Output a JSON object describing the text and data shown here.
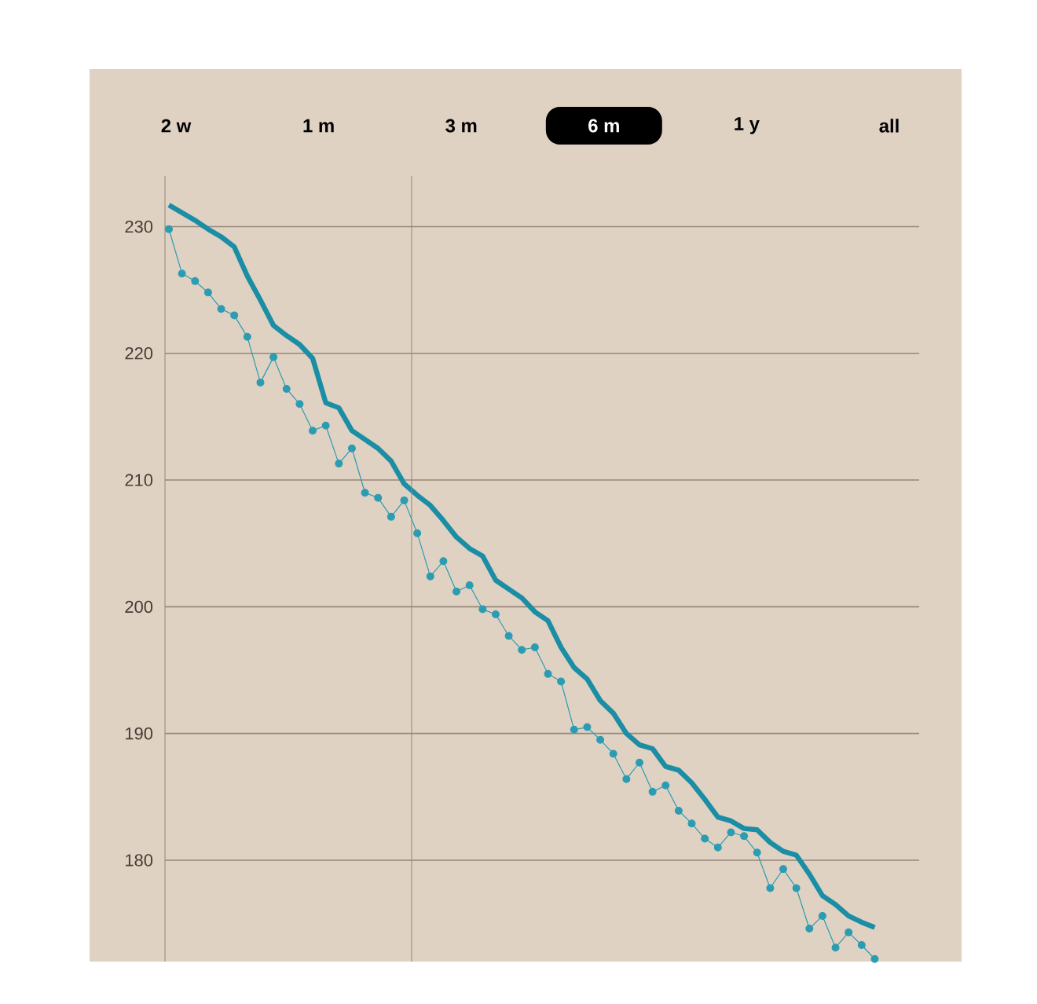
{
  "chart_data": {
    "type": "line",
    "categories": [
      null,
      null,
      null,
      null,
      null,
      null,
      null,
      null,
      null,
      null,
      null,
      null,
      null,
      null,
      null,
      null,
      null,
      null,
      null,
      null,
      null,
      null,
      null,
      null,
      null,
      null,
      null,
      null,
      null,
      null,
      null,
      null,
      null,
      null,
      null,
      null,
      null,
      null,
      null,
      null,
      null,
      null,
      null,
      null,
      null,
      null,
      null,
      null,
      null,
      null,
      null,
      null,
      null,
      null,
      null
    ],
    "ylim": [
      172,
      234
    ],
    "yticks": [
      180,
      190,
      200,
      210,
      220,
      230
    ],
    "tick_labels": "y",
    "grid": "y",
    "line_style": "solid",
    "annotations": [
      "2 w",
      "1 m",
      "3 m",
      "6 m",
      "1 y",
      "all"
    ],
    "series": [
      {
        "color": "#1b8ea6",
        "marker": "none",
        "values": [
          231.7,
          231.1,
          230.5,
          229.8,
          229.2,
          228.4,
          226.1,
          224.2,
          222.2,
          221.4,
          220.7,
          219.6,
          216.1,
          215.7,
          213.9,
          213.2,
          212.5,
          211.5,
          209.7,
          208.8,
          208.0,
          206.8,
          205.5,
          204.6,
          204.0,
          202.1,
          201.4,
          200.7,
          199.6,
          198.9,
          196.8,
          195.2,
          194.3,
          192.6,
          191.6,
          190.0,
          189.1,
          188.8,
          187.4,
          187.1,
          186.1,
          184.8,
          183.4,
          183.1,
          182.5,
          182.4,
          181.4,
          180.7,
          180.4,
          178.9,
          177.2,
          176.5,
          175.6,
          175.1,
          174.7
        ]
      },
      {
        "color": "#2b9cb2",
        "marker": "circle",
        "values": [
          229.8,
          226.3,
          225.7,
          224.8,
          223.5,
          223.0,
          221.3,
          217.7,
          219.7,
          217.2,
          216.0,
          213.9,
          214.3,
          211.3,
          212.5,
          209.0,
          208.6,
          207.1,
          208.4,
          205.8,
          202.4,
          203.6,
          201.2,
          201.7,
          199.8,
          199.4,
          197.7,
          196.6,
          196.8,
          194.7,
          194.1,
          190.3,
          190.5,
          189.5,
          188.4,
          186.4,
          187.7,
          185.4,
          185.9,
          183.9,
          182.9,
          181.7,
          181.0,
          182.2,
          181.9,
          180.6,
          177.8,
          179.3,
          177.8,
          174.6,
          175.6,
          173.1,
          174.3,
          173.3,
          172.2
        ]
      }
    ]
  }
}
